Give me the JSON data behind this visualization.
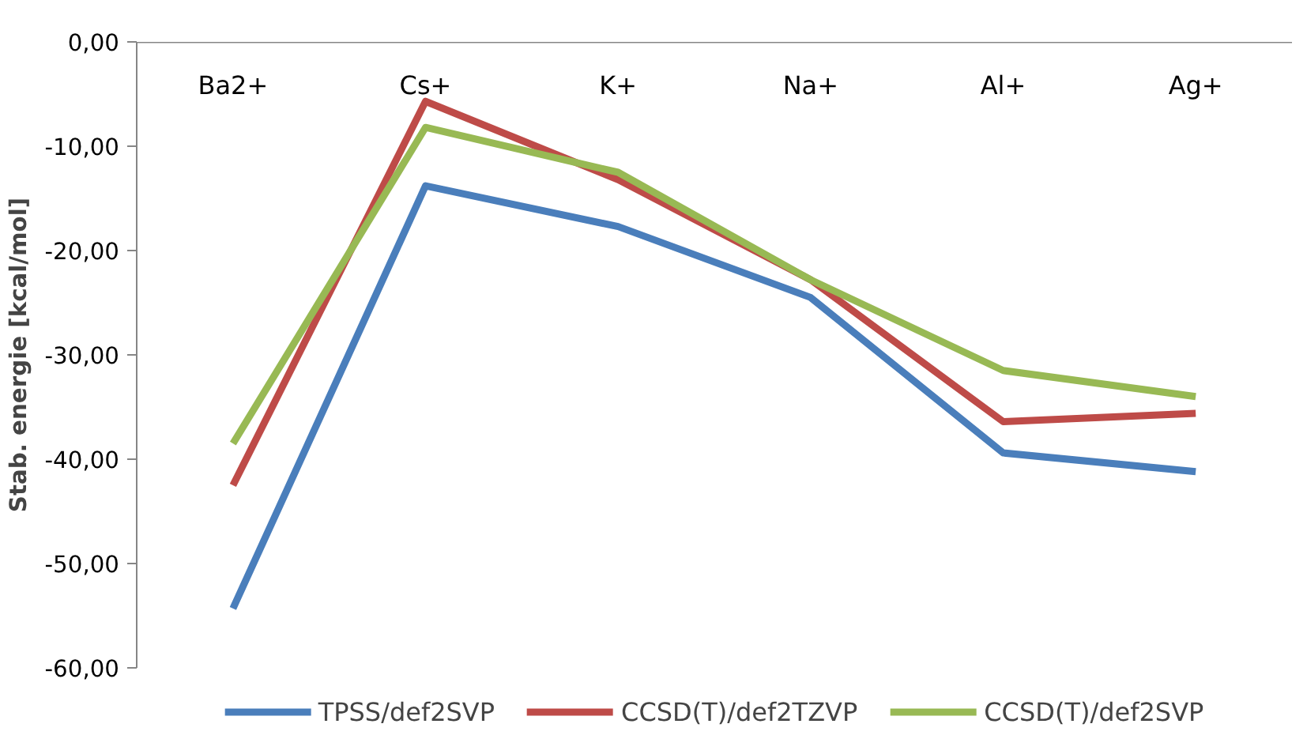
{
  "chart_data": {
    "type": "line",
    "ylabel": "Stab. energie [kcal/mol]",
    "categories": [
      "Ba2+",
      "Cs+",
      "K+",
      "Na+",
      "Al+",
      "Ag+"
    ],
    "series": [
      {
        "name": "TPSS/def2SVP",
        "color": "#4a7ebb",
        "values": [
          -54.3,
          -13.8,
          -17.7,
          -24.5,
          -39.4,
          -41.2
        ]
      },
      {
        "name": "CCSD(T)/def2TZVP",
        "color": "#be4b48",
        "values": [
          -42.5,
          -5.7,
          -13.2,
          -22.8,
          -36.4,
          -35.6
        ]
      },
      {
        "name": "CCSD(T)/def2SVP",
        "color": "#98b954",
        "values": [
          -38.5,
          -8.2,
          -12.5,
          -22.8,
          -31.5,
          -34.0
        ]
      }
    ],
    "ylim": [
      -60,
      0
    ],
    "yticks": [
      {
        "value": -60,
        "label": "-60,00"
      },
      {
        "value": -50,
        "label": "-50,00"
      },
      {
        "value": -40,
        "label": "-40,00"
      },
      {
        "value": -30,
        "label": "-30,00"
      },
      {
        "value": -20,
        "label": "-20,00"
      },
      {
        "value": -10,
        "label": "-10,00"
      },
      {
        "value": 0,
        "label": "0,00"
      }
    ],
    "grid": false,
    "legend": "bottom",
    "marker": "none",
    "line_style": "solid"
  }
}
